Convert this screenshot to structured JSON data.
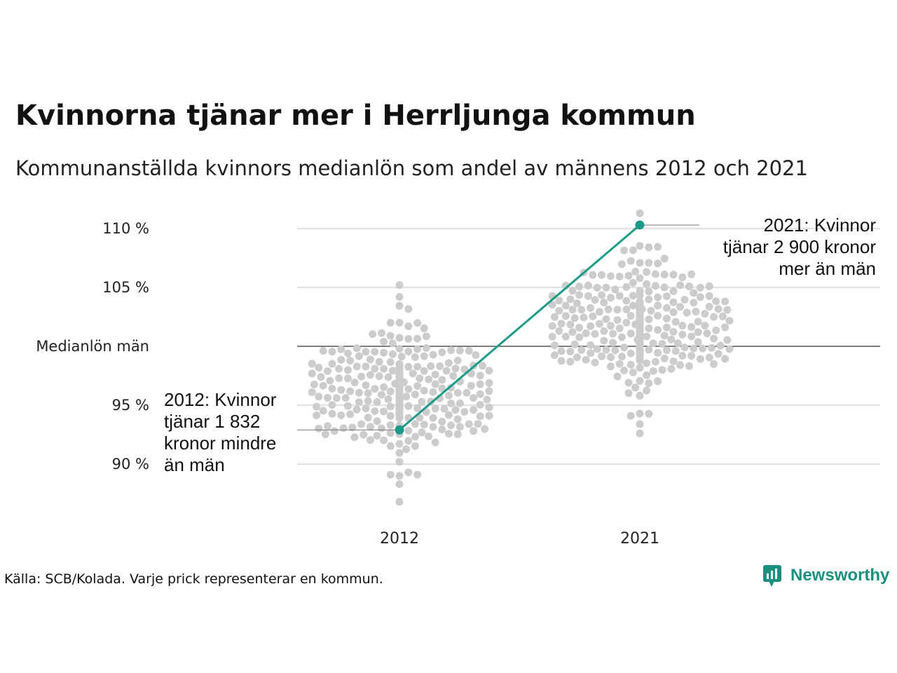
{
  "title": "Kvinnorna tjänar mer i Herrljunga kommun",
  "subtitle": "Kommunanställda kvinnors medianlön som andel av männens 2012 och 2021",
  "source": "Källa: SCB/Kolada. Varje prick representerar en kommun.",
  "brand": {
    "name": "Newsworthy",
    "color": "#1a8f80"
  },
  "colors": {
    "highlight": "#1a9a88",
    "dots": "#cccccc",
    "grid": "#e3e3e3",
    "baseline": "#333333"
  },
  "chart_data": {
    "type": "scatter",
    "x_categories": [
      "2012",
      "2021"
    ],
    "y_ticks": [
      {
        "value": 90,
        "label": "90 %"
      },
      {
        "value": 95,
        "label": "95 %"
      },
      {
        "value": 100,
        "label": "Medianlön män"
      },
      {
        "value": 105,
        "label": "105 %"
      },
      {
        "value": 110,
        "label": "110 %"
      }
    ],
    "ylim": [
      86.5,
      112
    ],
    "reference_line": 100,
    "grid": true,
    "highlight": {
      "name": "Herrljunga",
      "points": [
        {
          "x": "2012",
          "y": 92.9
        },
        {
          "x": "2021",
          "y": 110.3
        }
      ]
    },
    "annotations": [
      {
        "x": "2012",
        "lines": [
          "2012: Kvinnor",
          "tjänar 1 832",
          "kronor mindre",
          "än män"
        ]
      },
      {
        "x": "2021",
        "lines": [
          "2021: Kvinnor",
          "tjänar 2 900 kronor",
          "mer än män"
        ]
      }
    ],
    "distribution_2012": {
      "min": 86.8,
      "max": 105.2,
      "center": 96.3,
      "count": 290,
      "outliers": [
        86.8,
        89.1,
        89.1
      ]
    },
    "distribution_2021": {
      "min": 92.6,
      "max": 111.3,
      "center": 101.6,
      "count": 290,
      "outliers": [
        92.6,
        93.4,
        94.1
      ]
    }
  }
}
